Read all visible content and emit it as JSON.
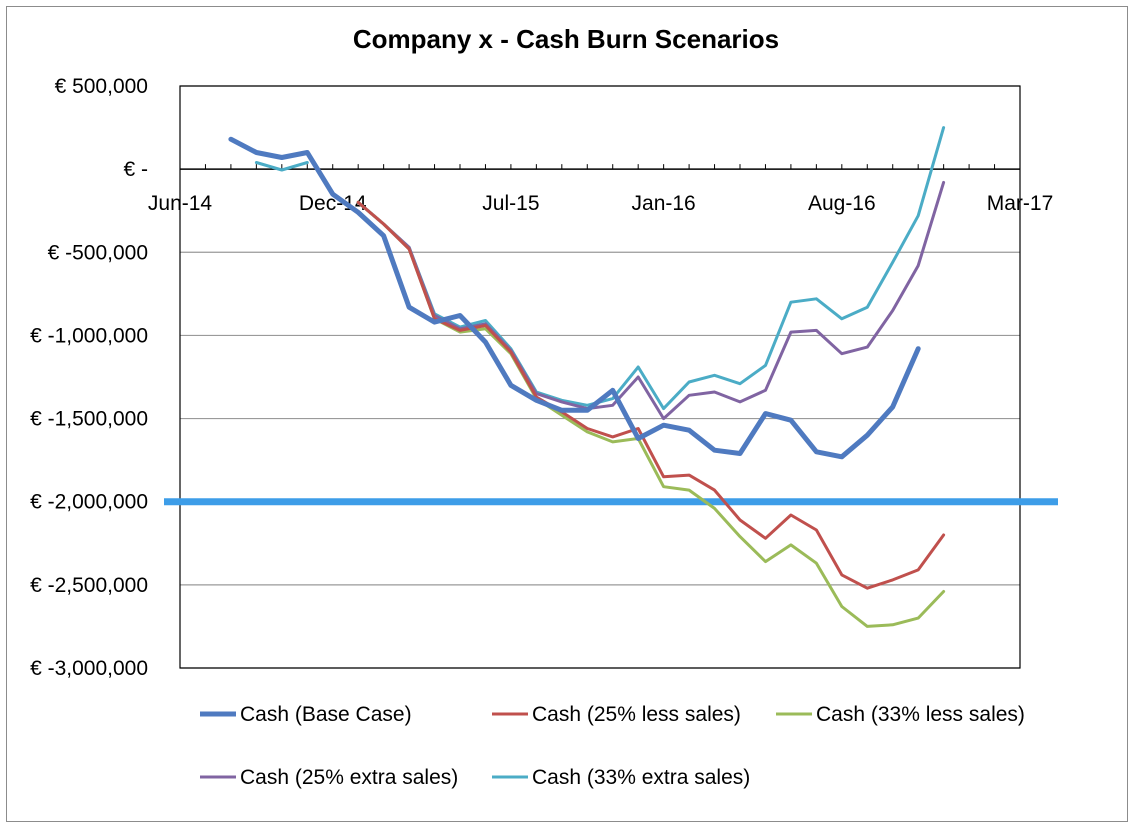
{
  "chart_data": {
    "type": "line",
    "title": "Company x - Cash Burn Scenarios",
    "xlabel": "",
    "ylabel": "",
    "x_tick_labels": [
      "Jun-14",
      "Dec-14",
      "Jul-15",
      "Jan-16",
      "Aug-16",
      "Mar-17"
    ],
    "y_tick_labels": [
      "€ 500,000",
      "€ -",
      "€ -500,000",
      "€ -1,000,000",
      "€ -1,500,000",
      "€ -2,000,000",
      "€ -2,500,000",
      "€ -3,000,000"
    ],
    "ylim": [
      -3000000,
      500000
    ],
    "grid": "horizontal",
    "legend_position": "bottom",
    "reference_line": {
      "value": -2000000,
      "color": "#3d9de8"
    },
    "x": [
      "Aug-14",
      "Sep-14",
      "Oct-14",
      "Nov-14",
      "Dec-14",
      "Jan-15",
      "Feb-15",
      "Mar-15",
      "Apr-15",
      "May-15",
      "Jun-15",
      "Jul-15",
      "Aug-15",
      "Sep-15",
      "Oct-15",
      "Nov-15",
      "Dec-15",
      "Jan-16",
      "Feb-16",
      "Mar-16",
      "Apr-16",
      "May-16",
      "Jun-16",
      "Jul-16",
      "Aug-16",
      "Sep-16",
      "Oct-16",
      "Nov-16",
      "Dec-16"
    ],
    "series": [
      {
        "name": "Cash (Base Case)",
        "color": "#4f7ac0",
        "width": 5,
        "values": [
          180000,
          100000,
          70000,
          100000,
          -150000,
          -260000,
          -400000,
          -830000,
          -920000,
          -880000,
          -1040000,
          -1300000,
          -1390000,
          -1450000,
          -1450000,
          -1330000,
          -1620000,
          -1540000,
          -1570000,
          -1690000,
          -1710000,
          -1470000,
          -1510000,
          -1700000,
          -1730000,
          -1600000,
          -1430000,
          -1080000,
          null
        ]
      },
      {
        "name": "Cash (25% less sales)",
        "color": "#c0504d",
        "width": 3,
        "values": [
          null,
          null,
          null,
          null,
          null,
          null,
          null,
          null,
          null,
          null,
          null,
          null,
          null,
          null,
          null,
          null,
          null,
          null,
          null,
          null,
          null,
          null,
          null,
          null,
          null,
          null,
          null,
          null,
          null
        ],
        "values_from_jan15": [
          -200000,
          -330000,
          -480000,
          -900000,
          -970000,
          -940000,
          -1100000,
          -1370000,
          -1460000,
          -1560000,
          -1610000,
          -1560000,
          -1850000,
          -1840000,
          -1930000,
          -2110000,
          -2220000,
          -2080000,
          -2170000,
          -2440000,
          -2520000,
          -2470000,
          -2410000,
          -2200000
        ]
      },
      {
        "name": "Cash (33% less sales)",
        "color": "#9bbb59",
        "width": 3,
        "values_from_jan15": [
          -200000,
          -330000,
          -480000,
          -900000,
          -980000,
          -960000,
          -1110000,
          -1380000,
          -1480000,
          -1580000,
          -1640000,
          -1620000,
          -1910000,
          -1930000,
          -2040000,
          -2210000,
          -2360000,
          -2260000,
          -2370000,
          -2630000,
          -2750000,
          -2740000,
          -2700000,
          -2540000
        ]
      },
      {
        "name": "Cash (25% extra sales)",
        "color": "#8064a2",
        "width": 3,
        "values_from_jan15": [
          -200000,
          -330000,
          -470000,
          -880000,
          -960000,
          -930000,
          -1090000,
          -1350000,
          -1400000,
          -1440000,
          -1420000,
          -1250000,
          -1500000,
          -1360000,
          -1340000,
          -1400000,
          -1330000,
          -980000,
          -970000,
          -1110000,
          -1070000,
          -850000,
          -580000,
          -80000
        ]
      },
      {
        "name": "Cash (33% extra sales)",
        "color": "#4bacc6",
        "width": 3,
        "values_first": [
          40000,
          -5000,
          40000
        ],
        "values_from_jan15": [
          -200000,
          -330000,
          -470000,
          -870000,
          -950000,
          -910000,
          -1080000,
          -1340000,
          -1390000,
          -1420000,
          -1380000,
          -1190000,
          -1440000,
          -1280000,
          -1240000,
          -1290000,
          -1180000,
          -800000,
          -780000,
          -900000,
          -830000,
          -560000,
          -280000,
          250000
        ]
      }
    ]
  }
}
